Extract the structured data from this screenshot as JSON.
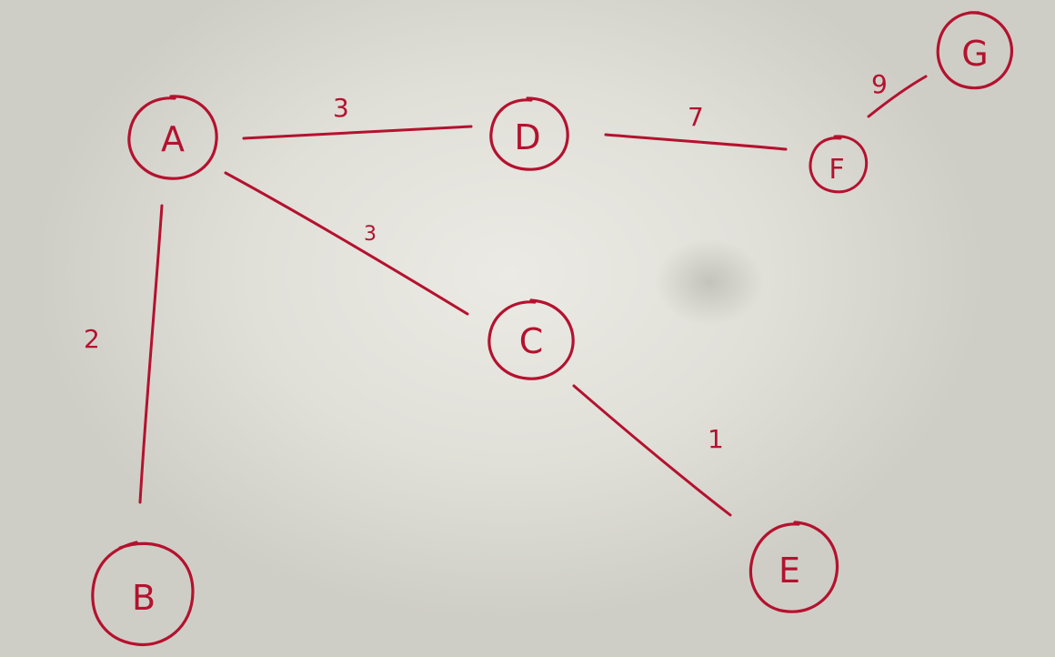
{
  "diagram": {
    "ink_color": "#b4122f",
    "paper_color": "#e4e3dc",
    "nodes": [
      {
        "id": "A",
        "label": "A"
      },
      {
        "id": "B",
        "label": "B"
      },
      {
        "id": "C",
        "label": "C"
      },
      {
        "id": "D",
        "label": "D"
      },
      {
        "id": "E",
        "label": "E"
      },
      {
        "id": "F",
        "label": "F"
      },
      {
        "id": "G",
        "label": "G"
      }
    ],
    "edges": [
      {
        "from": "A",
        "to": "D",
        "weight": "3"
      },
      {
        "from": "A",
        "to": "C",
        "weight": "3"
      },
      {
        "from": "A",
        "to": "B",
        "weight": "2"
      },
      {
        "from": "D",
        "to": "F",
        "weight": "7"
      },
      {
        "from": "F",
        "to": "G",
        "weight": "9"
      },
      {
        "from": "C",
        "to": "E",
        "weight": "1"
      }
    ]
  }
}
